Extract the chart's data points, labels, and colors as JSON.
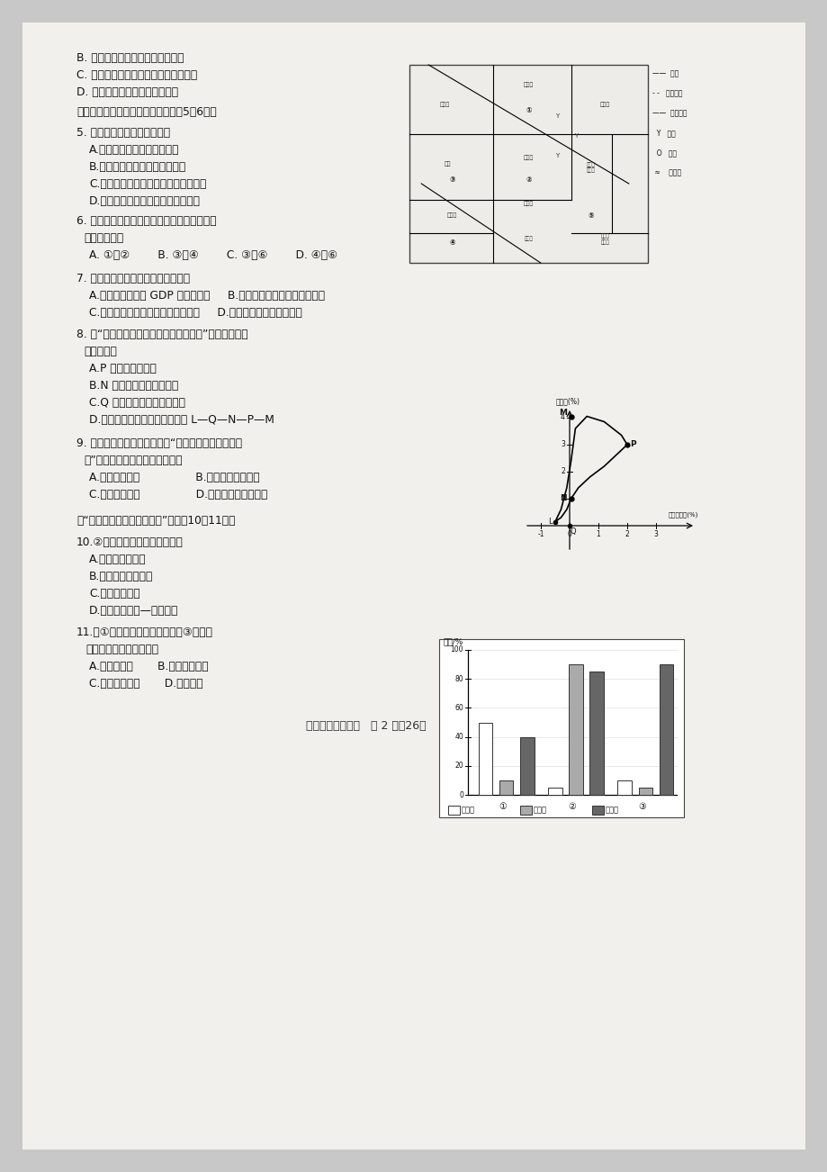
{
  "bg_color": "#c8c8c8",
  "page_bg": "#f2f0ed",
  "text_color": "#111111",
  "footer": "高一地理期末试题   第 2 页全26页",
  "bar_groups": [
    "①",
    "②",
    "③"
  ],
  "bar_series": [
    "种植业",
    "畜牲业",
    "商品率"
  ],
  "bar_data": [
    [
      50,
      5,
      10
    ],
    [
      10,
      90,
      5
    ],
    [
      40,
      85,
      90
    ]
  ],
  "bar_colors": [
    "#ffffff",
    "#aaaaaa",
    "#666666"
  ],
  "bar_edgecolor": "#333333",
  "y_ticks": [
    0,
    20,
    40,
    60,
    80,
    100
  ],
  "y_label": "比重/%",
  "pop_xticks": [
    -1,
    0,
    1,
    2,
    3
  ],
  "pop_yticks": [
    1,
    2,
    3,
    4
  ],
  "pop_xaxis_label": "自然增长率(%)",
  "pop_yaxis_label": "出生率(%)"
}
